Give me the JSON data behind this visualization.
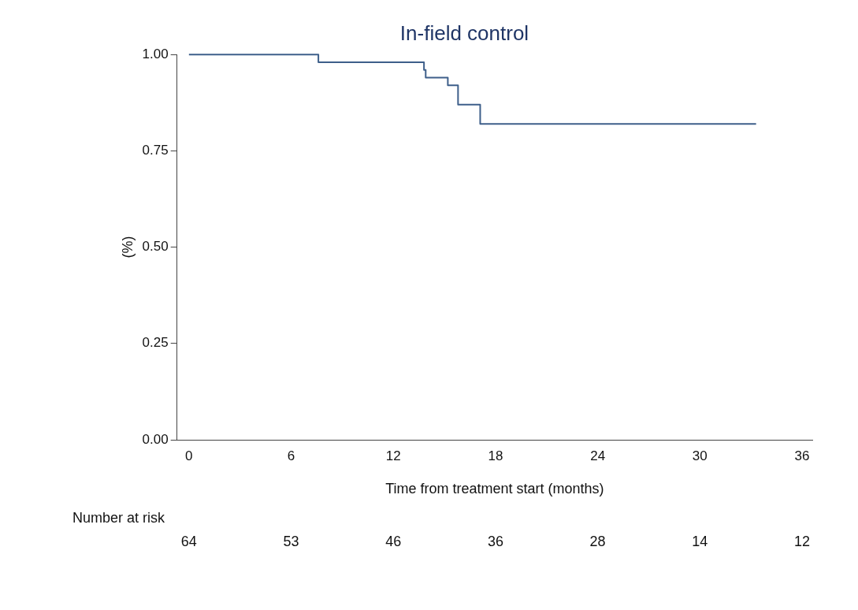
{
  "chart_data": {
    "type": "step",
    "title": "In-field control",
    "xlabel": "Time from treatment start (months)",
    "ylabel": "(%)",
    "x": [
      0,
      7.6,
      13.8,
      13.9,
      15.2,
      15.8,
      17.1,
      33.3
    ],
    "series": [
      {
        "color": "#3e5f8a",
        "values": [
          1,
          0.98,
          0.96,
          0.94,
          0.92,
          0.87,
          0.82,
          0.82
        ]
      }
    ],
    "xlim": [
      -0.7,
      36.6
    ],
    "xticks": [
      0,
      6,
      12,
      18,
      24,
      30,
      36
    ],
    "ylim": [
      0,
      1
    ],
    "yticks": [
      {
        "value": 0,
        "label": "0.00"
      },
      {
        "value": 0.25,
        "label": "0.25"
      },
      {
        "value": 0.5,
        "label": "0.50"
      },
      {
        "value": 0.75,
        "label": "0.75"
      },
      {
        "value": 1,
        "label": "1.00"
      }
    ],
    "grid": false,
    "legend": false,
    "marker": "none",
    "line_style": "solid",
    "annotations": [
      "Number at risk",
      "64",
      "53",
      "46",
      "36",
      "28",
      "14",
      "12"
    ]
  }
}
